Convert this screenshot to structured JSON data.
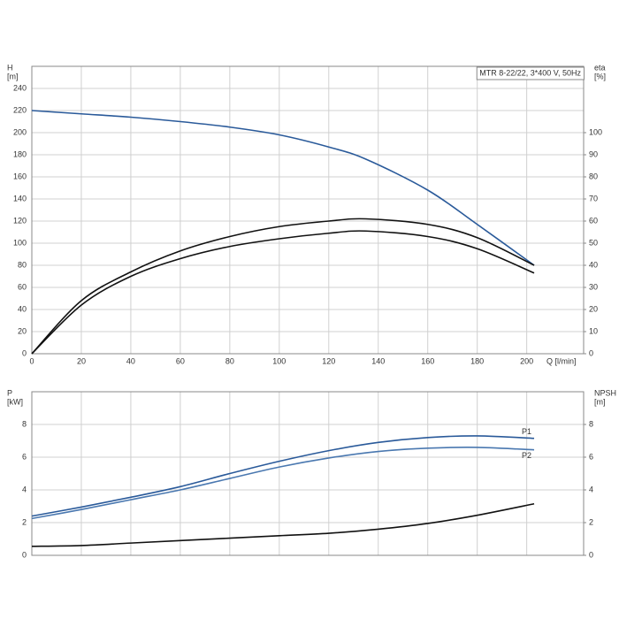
{
  "chart_data": [
    {
      "type": "line",
      "title": "MTR 8-22/22, 3*400 V, 50Hz",
      "xlabel": "Q [l/min]",
      "ylabel": "H",
      "yunit": "[m]",
      "y2label": "eta",
      "y2unit": "[%]",
      "x": [
        0,
        20,
        40,
        60,
        80,
        100,
        120,
        135,
        160,
        180,
        203
      ],
      "xlim": [
        0,
        223
      ],
      "xticks": [
        0,
        20,
        40,
        60,
        80,
        100,
        120,
        140,
        160,
        180,
        200
      ],
      "xtick_labels": true,
      "ylim": [
        0,
        260
      ],
      "yticks": [
        0,
        20,
        40,
        60,
        80,
        100,
        120,
        140,
        160,
        180,
        200,
        220,
        240
      ],
      "y2lim": [
        0,
        130
      ],
      "y2ticks": [
        0,
        10,
        20,
        30,
        40,
        50,
        60,
        70,
        80,
        90,
        100
      ],
      "grid": true,
      "series": [
        {
          "color": "#2a5a9a",
          "values": [
            220,
            217,
            214,
            210,
            205,
            198,
            187,
            176,
            148,
            117,
            80
          ]
        },
        {
          "color": "#111111",
          "axis": "y2",
          "values": [
            0,
            24,
            37,
            46.5,
            53,
            57.5,
            60,
            61,
            58.5,
            52.5,
            40
          ]
        },
        {
          "color": "#111111",
          "axis": "y2",
          "values": [
            0,
            22,
            35,
            43,
            48.5,
            52,
            54.5,
            55.5,
            53,
            47.5,
            36.5
          ]
        }
      ]
    },
    {
      "type": "line",
      "ylabel": "P",
      "yunit": "[kW]",
      "y2label": "NPSH",
      "y2unit": "[m]",
      "x": [
        0,
        20,
        40,
        60,
        80,
        100,
        120,
        140,
        160,
        180,
        203
      ],
      "xlim": [
        0,
        223
      ],
      "xticks": [
        0,
        20,
        40,
        60,
        80,
        100,
        120,
        140,
        160,
        180,
        200
      ],
      "xtick_labels": false,
      "ylim": [
        0,
        10
      ],
      "yticks": [
        0,
        2,
        4,
        6,
        8
      ],
      "y2lim": [
        0,
        10
      ],
      "y2ticks": [
        0,
        2,
        4,
        6,
        8
      ],
      "grid": true,
      "series": [
        {
          "name": "P1",
          "color": "#2a5a9a",
          "values": [
            2.4,
            2.95,
            3.55,
            4.2,
            5.0,
            5.75,
            6.4,
            6.9,
            7.2,
            7.3,
            7.15
          ]
        },
        {
          "name": "P2",
          "color": "#4a78b0",
          "values": [
            2.25,
            2.8,
            3.4,
            4.0,
            4.7,
            5.4,
            5.95,
            6.35,
            6.55,
            6.6,
            6.45
          ]
        },
        {
          "color": "#111111",
          "axis": "y2",
          "values": [
            0.55,
            0.6,
            0.75,
            0.9,
            1.05,
            1.2,
            1.35,
            1.6,
            1.95,
            2.45,
            3.15
          ]
        }
      ]
    }
  ]
}
